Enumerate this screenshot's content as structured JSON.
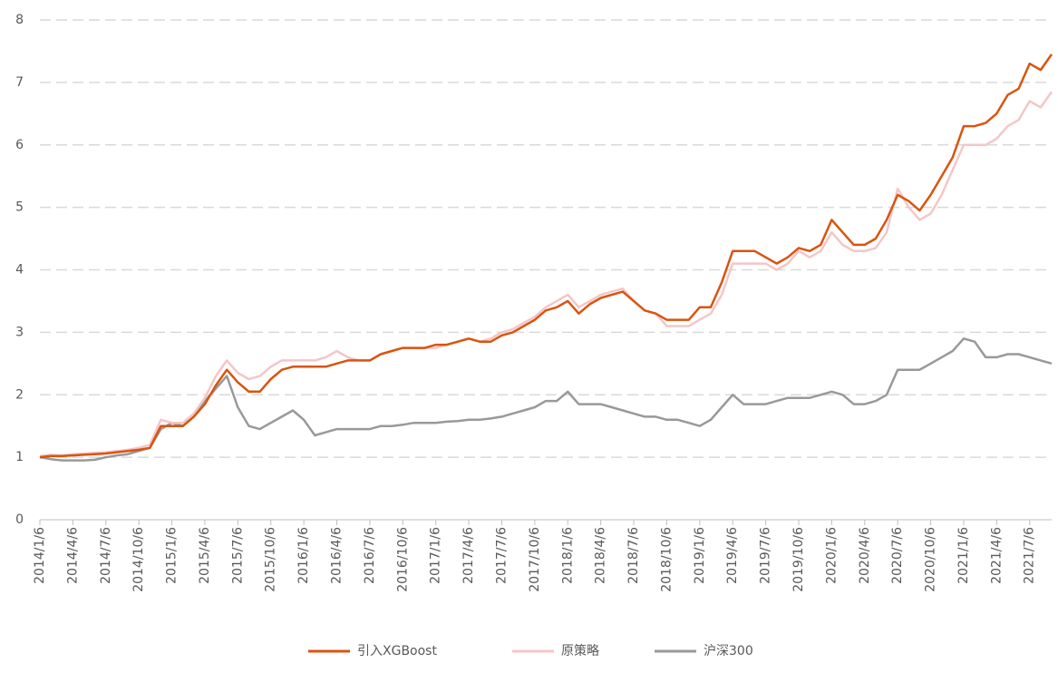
{
  "chart_data": {
    "type": "line",
    "categories": [
      "2014/1/6",
      null,
      null,
      "2014/4/6",
      null,
      null,
      "2014/7/6",
      null,
      null,
      "2014/10/6",
      null,
      null,
      "2015/1/6",
      null,
      null,
      "2015/4/6",
      null,
      null,
      "2015/7/6",
      null,
      null,
      "2015/10/6",
      null,
      null,
      "2016/1/6",
      null,
      null,
      "2016/4/6",
      null,
      null,
      "2016/7/6",
      null,
      null,
      "2016/10/6",
      null,
      null,
      "2017/1/6",
      null,
      null,
      "2017/4/6",
      null,
      null,
      "2017/7/6",
      null,
      null,
      "2017/10/6",
      null,
      null,
      "2018/1/6",
      null,
      null,
      "2018/4/6",
      null,
      null,
      "2018/7/6",
      null,
      null,
      "2018/10/6",
      null,
      null,
      "2019/1/6",
      null,
      null,
      "2019/4/6",
      null,
      null,
      "2019/7/6",
      null,
      null,
      "2019/10/6",
      null,
      null,
      "2020/1/6",
      null,
      null,
      "2020/4/6",
      null,
      null,
      "2020/7/6",
      null,
      null,
      "2020/10/6",
      null,
      null,
      "2021/1/6",
      null,
      null,
      "2021/4/6",
      null,
      null,
      "2021/7/6",
      null,
      null
    ],
    "series": [
      {
        "name": "引入XGBoost",
        "color": "#d9540f",
        "values": [
          1.0,
          1.02,
          1.02,
          1.03,
          1.04,
          1.05,
          1.06,
          1.08,
          1.1,
          1.12,
          1.15,
          1.5,
          1.5,
          1.5,
          1.65,
          1.85,
          2.15,
          2.4,
          2.2,
          2.05,
          2.05,
          2.25,
          2.4,
          2.45,
          2.45,
          2.45,
          2.45,
          2.5,
          2.55,
          2.55,
          2.55,
          2.65,
          2.7,
          2.75,
          2.75,
          2.75,
          2.8,
          2.8,
          2.85,
          2.9,
          2.85,
          2.85,
          2.95,
          3.0,
          3.1,
          3.2,
          3.35,
          3.4,
          3.5,
          3.3,
          3.45,
          3.55,
          3.6,
          3.65,
          3.5,
          3.35,
          3.3,
          3.2,
          3.2,
          3.2,
          3.4,
          3.4,
          3.8,
          4.3,
          4.3,
          4.3,
          4.2,
          4.1,
          4.2,
          4.35,
          4.3,
          4.4,
          4.8,
          4.6,
          4.4,
          4.4,
          4.5,
          4.8,
          5.2,
          5.1,
          4.95,
          5.2,
          5.5,
          5.8,
          6.3,
          6.3,
          6.35,
          6.5,
          6.8,
          6.9,
          7.3,
          7.2,
          7.45
        ]
      },
      {
        "name": "原策略",
        "color": "#f4c6c8",
        "values": [
          1.02,
          1.04,
          1.03,
          1.05,
          1.06,
          1.07,
          1.08,
          1.1,
          1.12,
          1.15,
          1.2,
          1.6,
          1.55,
          1.55,
          1.7,
          1.95,
          2.3,
          2.55,
          2.35,
          2.25,
          2.3,
          2.45,
          2.55,
          2.55,
          2.55,
          2.55,
          2.6,
          2.7,
          2.6,
          2.55,
          2.55,
          2.65,
          2.7,
          2.75,
          2.75,
          2.75,
          2.75,
          2.8,
          2.85,
          2.9,
          2.85,
          2.9,
          3.0,
          3.05,
          3.15,
          3.25,
          3.4,
          3.5,
          3.6,
          3.4,
          3.5,
          3.6,
          3.65,
          3.7,
          3.5,
          3.35,
          3.3,
          3.1,
          3.1,
          3.1,
          3.2,
          3.3,
          3.6,
          4.1,
          4.1,
          4.1,
          4.1,
          4.0,
          4.1,
          4.3,
          4.2,
          4.3,
          4.6,
          4.4,
          4.3,
          4.3,
          4.35,
          4.6,
          5.3,
          5.0,
          4.8,
          4.9,
          5.2,
          5.6,
          6.0,
          6.0,
          6.0,
          6.1,
          6.3,
          6.4,
          6.7,
          6.6,
          6.85
        ]
      },
      {
        "name": "沪深300",
        "color": "#999999",
        "values": [
          1.0,
          0.97,
          0.95,
          0.95,
          0.95,
          0.96,
          1.0,
          1.03,
          1.05,
          1.1,
          1.15,
          1.45,
          1.55,
          1.5,
          1.65,
          1.9,
          2.1,
          2.3,
          1.8,
          1.5,
          1.45,
          1.55,
          1.65,
          1.75,
          1.6,
          1.35,
          1.4,
          1.45,
          1.45,
          1.45,
          1.45,
          1.5,
          1.5,
          1.52,
          1.55,
          1.55,
          1.55,
          1.57,
          1.58,
          1.6,
          1.6,
          1.62,
          1.65,
          1.7,
          1.75,
          1.8,
          1.9,
          1.9,
          2.05,
          1.85,
          1.85,
          1.85,
          1.8,
          1.75,
          1.7,
          1.65,
          1.65,
          1.6,
          1.6,
          1.55,
          1.5,
          1.6,
          1.8,
          2.0,
          1.85,
          1.85,
          1.85,
          1.9,
          1.95,
          1.95,
          1.95,
          2.0,
          2.05,
          2.0,
          1.85,
          1.85,
          1.9,
          2.0,
          2.4,
          2.4,
          2.4,
          2.5,
          2.6,
          2.7,
          2.9,
          2.85,
          2.6,
          2.6,
          2.65,
          2.65,
          2.6,
          2.55,
          2.5
        ]
      }
    ],
    "ylim": [
      0,
      8
    ],
    "yticks": [
      0,
      1,
      2,
      3,
      4,
      5,
      6,
      7,
      8
    ],
    "grid": true,
    "legend": "bottom"
  }
}
